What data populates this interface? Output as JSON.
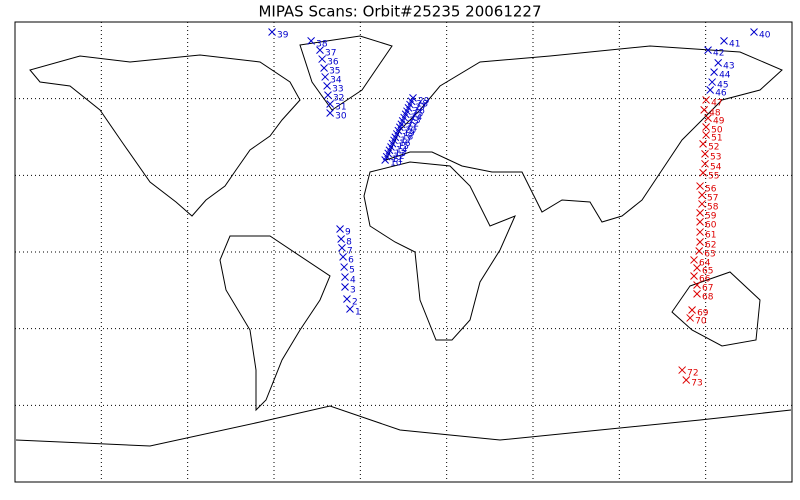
{
  "title": "MIPAS Scans: Orbit#25235 20061227",
  "groups": [
    {
      "color": "#0000cc",
      "scans": [
        {
          "n": 1,
          "lon": -24.8,
          "lat": -22.3
        },
        {
          "n": 2,
          "lon": -26.2,
          "lat": -18.4
        },
        {
          "n": 3,
          "lon": -27.1,
          "lat": -13.7
        },
        {
          "n": 4,
          "lon": -27.1,
          "lat": -9.8
        },
        {
          "n": 5,
          "lon": -27.5,
          "lat": -5.9
        },
        {
          "n": 6,
          "lon": -28.0,
          "lat": -1.9
        },
        {
          "n": 7,
          "lon": -28.5,
          "lat": 1.6
        },
        {
          "n": 8,
          "lon": -28.9,
          "lat": 5.1
        },
        {
          "n": 9,
          "lon": -29.4,
          "lat": 9.0
        },
        {
          "n": 10,
          "lon": -8.5,
          "lat": 36.0
        },
        {
          "n": 11,
          "lon": -7.8,
          "lat": 37.3
        },
        {
          "n": 12,
          "lon": -7.1,
          "lat": 38.6
        },
        {
          "n": 13,
          "lon": -6.5,
          "lat": 39.8
        },
        {
          "n": 14,
          "lon": -5.8,
          "lat": 41.1
        },
        {
          "n": 15,
          "lon": -5.1,
          "lat": 42.4
        },
        {
          "n": 16,
          "lon": -4.4,
          "lat": 43.7
        },
        {
          "n": 17,
          "lon": -3.8,
          "lat": 44.9
        },
        {
          "n": 18,
          "lon": -3.1,
          "lat": 46.2
        },
        {
          "n": 19,
          "lon": -2.4,
          "lat": 47.5
        },
        {
          "n": 20,
          "lon": -1.7,
          "lat": 48.8
        },
        {
          "n": 21,
          "lon": -1.0,
          "lat": 50.0
        },
        {
          "n": 22,
          "lon": -0.4,
          "lat": 51.3
        },
        {
          "n": 23,
          "lon": 0.3,
          "lat": 52.6
        },
        {
          "n": 24,
          "lon": 1.0,
          "lat": 53.9
        },
        {
          "n": 25,
          "lon": 1.6,
          "lat": 55.1
        },
        {
          "n": 26,
          "lon": 2.3,
          "lat": 56.4
        },
        {
          "n": 27,
          "lon": 3.0,
          "lat": 57.7
        },
        {
          "n": 28,
          "lon": 3.7,
          "lat": 59.0
        },
        {
          "n": 29,
          "lon": 4.4,
          "lat": 60.3
        },
        {
          "n": 30,
          "lon": -34.0,
          "lat": 54.4
        },
        {
          "n": 31,
          "lon": -34.0,
          "lat": 57.9
        },
        {
          "n": 32,
          "lon": -35.0,
          "lat": 61.4
        },
        {
          "n": 33,
          "lon": -35.4,
          "lat": 65.0
        },
        {
          "n": 34,
          "lon": -36.3,
          "lat": 68.5
        },
        {
          "n": 35,
          "lon": -36.8,
          "lat": 72.0
        },
        {
          "n": 36,
          "lon": -37.7,
          "lat": 75.5
        },
        {
          "n": 37,
          "lon": -38.7,
          "lat": 79.0
        },
        {
          "n": 38,
          "lon": -42.8,
          "lat": 82.6
        },
        {
          "n": 39,
          "lon": -60.9,
          "lat": 86.1
        },
        {
          "n": 40,
          "lon": 162.4,
          "lat": 86.1
        },
        {
          "n": 41,
          "lon": 148.5,
          "lat": 82.6
        },
        {
          "n": 42,
          "lon": 141.1,
          "lat": 79.0
        },
        {
          "n": 43,
          "lon": 145.8,
          "lat": 74.0
        },
        {
          "n": 44,
          "lon": 143.9,
          "lat": 70.4
        },
        {
          "n": 45,
          "lon": 143.0,
          "lat": 66.5
        },
        {
          "n": 46,
          "lon": 142.1,
          "lat": 63.4
        }
      ]
    },
    {
      "color": "#dd0000",
      "scans": [
        {
          "n": 47,
          "lon": 140.2,
          "lat": 59.5
        },
        {
          "n": 48,
          "lon": 139.3,
          "lat": 55.6
        },
        {
          "n": 49,
          "lon": 141.1,
          "lat": 52.4
        },
        {
          "n": 50,
          "lon": 140.2,
          "lat": 48.9
        },
        {
          "n": 51,
          "lon": 140.2,
          "lat": 45.8
        },
        {
          "n": 52,
          "lon": 138.8,
          "lat": 42.3
        },
        {
          "n": 53,
          "lon": 139.7,
          "lat": 38.4
        },
        {
          "n": 54,
          "lon": 139.7,
          "lat": 34.5
        },
        {
          "n": 55,
          "lon": 138.8,
          "lat": 31.0
        },
        {
          "n": 56,
          "lon": 137.4,
          "lat": 25.8
        },
        {
          "n": 57,
          "lon": 138.3,
          "lat": 22.3
        },
        {
          "n": 58,
          "lon": 138.3,
          "lat": 18.8
        },
        {
          "n": 59,
          "lon": 137.4,
          "lat": 15.3
        },
        {
          "n": 60,
          "lon": 137.4,
          "lat": 11.8
        },
        {
          "n": 61,
          "lon": 137.4,
          "lat": 7.8
        },
        {
          "n": 62,
          "lon": 137.4,
          "lat": 3.9
        },
        {
          "n": 63,
          "lon": 137.0,
          "lat": 0.4
        },
        {
          "n": 64,
          "lon": 134.6,
          "lat": -3.1
        },
        {
          "n": 65,
          "lon": 136.0,
          "lat": -6.2
        },
        {
          "n": 66,
          "lon": 134.6,
          "lat": -9.4
        },
        {
          "n": 67,
          "lon": 136.0,
          "lat": -12.9
        },
        {
          "n": 68,
          "lon": 136.0,
          "lat": -16.4
        },
        {
          "n": 69,
          "lon": 133.7,
          "lat": -22.7
        },
        {
          "n": 70,
          "lon": 132.8,
          "lat": -25.8
        },
        {
          "n": 72,
          "lon": 129.1,
          "lat": -46.2
        },
        {
          "n": 73,
          "lon": 131.0,
          "lat": -50.1
        }
      ]
    }
  ]
}
